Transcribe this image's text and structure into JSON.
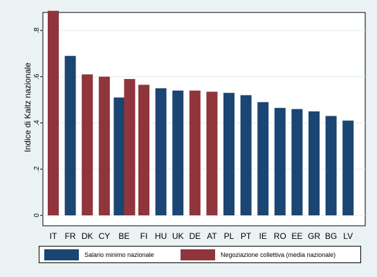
{
  "chart_data": {
    "type": "bar",
    "ylabel": "Indice di Kaitz nazionale",
    "ylim": [
      0,
      0.88
    ],
    "yticks": [
      0,
      0.2,
      0.4,
      0.6,
      0.8
    ],
    "ytick_labels": [
      "0",
      ".2",
      ".4",
      ".6",
      ".8"
    ],
    "grid": true,
    "legend_position": "bottom",
    "colors": {
      "salario": "#1b4572",
      "negoziazione": "#90353b"
    },
    "categories": [
      "IT",
      "FR",
      "DK",
      "CY",
      "BE",
      "FI",
      "HU",
      "UK",
      "DE",
      "AT",
      "PL",
      "PT",
      "IE",
      "RO",
      "EE",
      "GR",
      "BG",
      "LV"
    ],
    "series": [
      {
        "key": "salario",
        "name": "Salario minimo nazionale",
        "values": [
          null,
          0.69,
          null,
          null,
          0.51,
          null,
          0.55,
          0.54,
          null,
          null,
          0.53,
          0.52,
          0.49,
          0.465,
          0.46,
          0.45,
          0.43,
          0.41
        ]
      },
      {
        "key": "negoziazione",
        "name": "Negoziazione collettiva  (media nazionale)",
        "values": [
          0.885,
          null,
          0.61,
          0.6,
          0.59,
          0.565,
          null,
          null,
          0.54,
          0.535,
          null,
          null,
          null,
          null,
          null,
          null,
          null,
          null
        ]
      }
    ]
  }
}
